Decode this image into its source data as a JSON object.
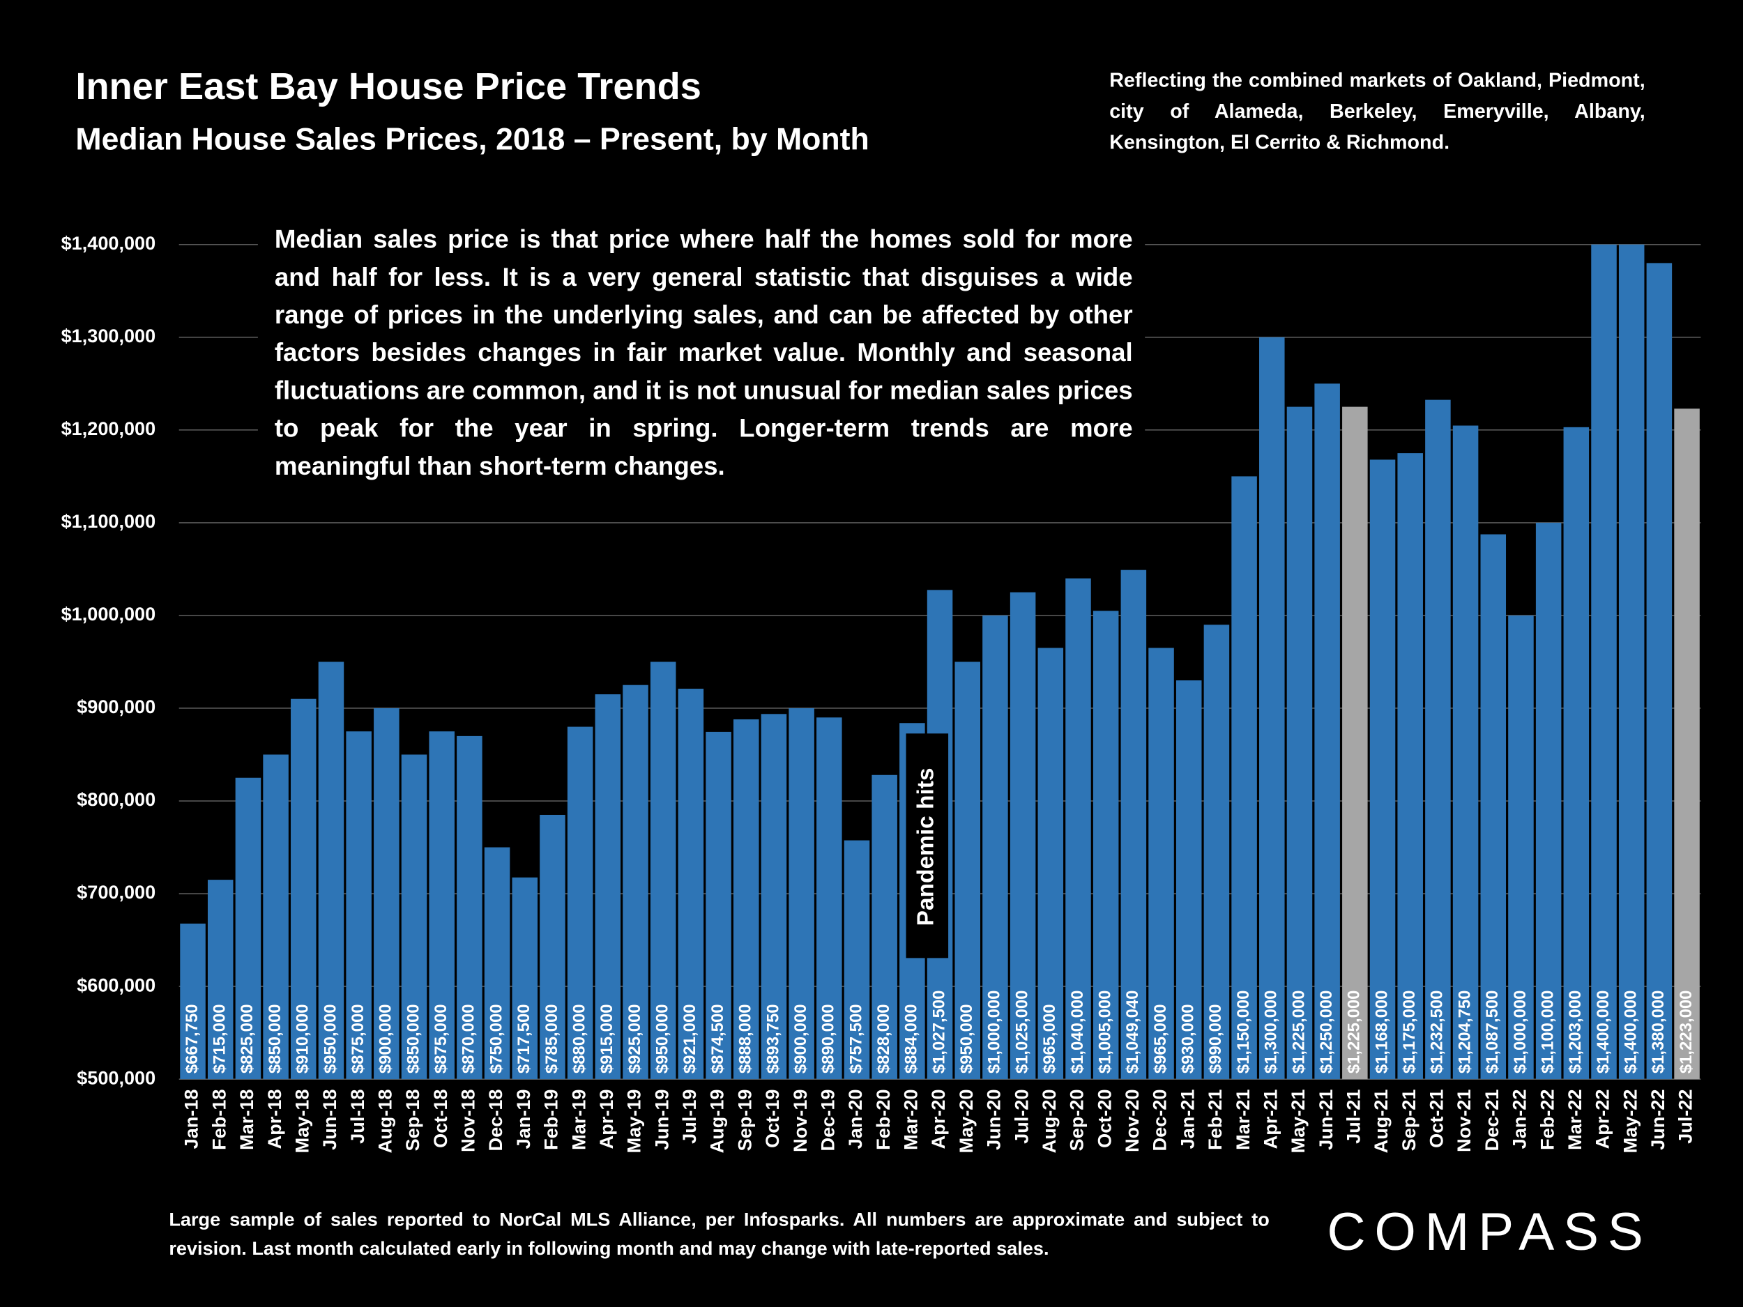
{
  "chart_data": {
    "type": "bar",
    "title": "Inner East Bay House Price Trends",
    "subtitle": "Median House Sales Prices, 2018 – Present, by Month",
    "note": "Reflecting the combined markets of Oakland, Piedmont, city of Alameda, Berkeley, Emeryville, Albany, Kensington, El Cerrito & Richmond.",
    "annotation": "Median sales price is that price where half the homes sold for more and half for less. It is a very general statistic that disguises a wide range of prices in the underlying sales, and can be affected by other factors besides changes in fair market value. Monthly and seasonal fluctuations are common, and it is not unusual for median sales prices to peak for the year in spring. Longer-term trends are more meaningful than short-term changes.",
    "event_label": "Pandemic hits",
    "footnote": "Large sample of sales reported to NorCal MLS Alliance, per Infosparks. All numbers are approximate and subject to revision. Last month calculated early in following month and may change with late-reported sales.",
    "brand": "COMPASS",
    "categories": [
      "Jan-18",
      "Feb-18",
      "Mar-18",
      "Apr-18",
      "May-18",
      "Jun-18",
      "Jul-18",
      "Aug-18",
      "Sep-18",
      "Oct-18",
      "Nov-18",
      "Dec-18",
      "Jan-19",
      "Feb-19",
      "Mar-19",
      "Apr-19",
      "May-19",
      "Jun-19",
      "Jul-19",
      "Aug-19",
      "Sep-19",
      "Oct-19",
      "Nov-19",
      "Dec-19",
      "Jan-20",
      "Feb-20",
      "Mar-20",
      "Apr-20",
      "May-20",
      "Jun-20",
      "Jul-20",
      "Aug-20",
      "Sep-20",
      "Oct-20",
      "Nov-20",
      "Dec-20",
      "Jan-21",
      "Feb-21",
      "Mar-21",
      "Apr-21",
      "May-21",
      "Jun-21",
      "Jul-21",
      "Aug-21",
      "Sep-21",
      "Oct-21",
      "Nov-21",
      "Dec-21",
      "Jan-22",
      "Feb-22",
      "Mar-22",
      "Apr-22",
      "May-22",
      "Jun-22",
      "Jul-22"
    ],
    "values": [
      667750,
      715000,
      825000,
      850000,
      910000,
      950000,
      875000,
      900000,
      850000,
      875000,
      870000,
      750000,
      717500,
      785000,
      880000,
      915000,
      925000,
      950000,
      921000,
      874500,
      888000,
      893750,
      900000,
      890000,
      757500,
      828000,
      884000,
      1027500,
      950000,
      1000000,
      1025000,
      965000,
      1040000,
      1005000,
      1049040,
      965000,
      930000,
      990000,
      1150000,
      1300000,
      1225000,
      1250000,
      1225000,
      1168000,
      1175000,
      1232500,
      1204750,
      1087500,
      1000000,
      1100000,
      1203000,
      1400000,
      1400000,
      1380000,
      1223000
    ],
    "value_labels": [
      "$667,750",
      "$715,000",
      "$825,000",
      "$850,000",
      "$910,000",
      "$950,000",
      "$875,000",
      "$900,000",
      "$850,000",
      "$875,000",
      "$870,000",
      "$750,000",
      "$717,500",
      "$785,000",
      "$880,000",
      "$915,000",
      "$925,000",
      "$950,000",
      "$921,000",
      "$874,500",
      "$888,000",
      "$893,750",
      "$900,000",
      "$890,000",
      "$757,500",
      "$828,000",
      "$884,000",
      "$1,027,500",
      "$950,000",
      "$1,000,000",
      "$1,025,000",
      "$965,000",
      "$1,040,000",
      "$1,005,000",
      "$1,049,040",
      "$965,000",
      "$930,000",
      "$990,000",
      "$1,150,000",
      "$1,300,000",
      "$1,225,000",
      "$1,250,000",
      "$1,225,000",
      "$1,168,000",
      "$1,175,000",
      "$1,232,500",
      "$1,204,750",
      "$1,087,500",
      "$1,000,000",
      "$1,100,000",
      "$1,203,000",
      "$1,400,000",
      "$1,400,000",
      "$1,380,000",
      "$1,223,000"
    ],
    "colors": [
      "#2e75b6",
      "#2e75b6",
      "#2e75b6",
      "#2e75b6",
      "#2e75b6",
      "#2e75b6",
      "#2e75b6",
      "#2e75b6",
      "#2e75b6",
      "#2e75b6",
      "#2e75b6",
      "#2e75b6",
      "#2e75b6",
      "#2e75b6",
      "#2e75b6",
      "#2e75b6",
      "#2e75b6",
      "#2e75b6",
      "#2e75b6",
      "#2e75b6",
      "#2e75b6",
      "#2e75b6",
      "#2e75b6",
      "#2e75b6",
      "#2e75b6",
      "#2e75b6",
      "#2e75b6",
      "#2e75b6",
      "#2e75b6",
      "#2e75b6",
      "#2e75b6",
      "#2e75b6",
      "#2e75b6",
      "#2e75b6",
      "#2e75b6",
      "#2e75b6",
      "#2e75b6",
      "#2e75b6",
      "#2e75b6",
      "#2e75b6",
      "#2e75b6",
      "#2e75b6",
      "#a6a6a6",
      "#2e75b6",
      "#2e75b6",
      "#2e75b6",
      "#2e75b6",
      "#2e75b6",
      "#2e75b6",
      "#2e75b6",
      "#2e75b6",
      "#2e75b6",
      "#2e75b6",
      "#2e75b6",
      "#a6a6a6"
    ],
    "ylim": [
      500000,
      1400000
    ],
    "yticks": [
      {
        "value": 500000,
        "label": "$500,000"
      },
      {
        "value": 600000,
        "label": "$600,000"
      },
      {
        "value": 700000,
        "label": "$700,000"
      },
      {
        "value": 800000,
        "label": "$800,000"
      },
      {
        "value": 900000,
        "label": "$900,000"
      },
      {
        "value": 1000000,
        "label": "$1,000,000"
      },
      {
        "value": 1100000,
        "label": "$1,100,000"
      },
      {
        "value": 1200000,
        "label": "$1,200,000"
      },
      {
        "value": 1300000,
        "label": "$1,300,000"
      },
      {
        "value": 1400000,
        "label": "$1,400,000"
      }
    ],
    "grid": true
  }
}
